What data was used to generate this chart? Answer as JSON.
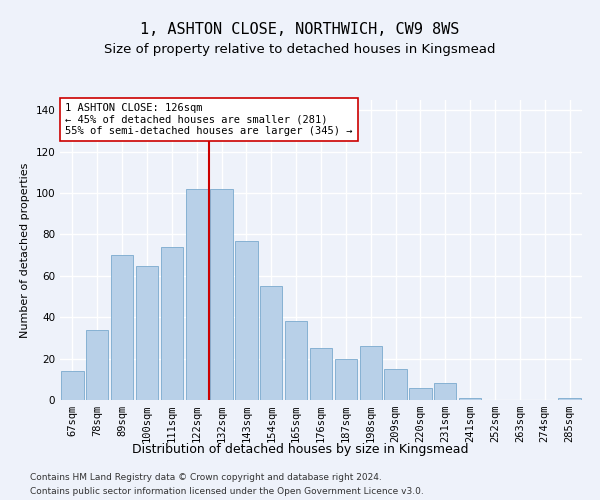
{
  "title": "1, ASHTON CLOSE, NORTHWICH, CW9 8WS",
  "subtitle": "Size of property relative to detached houses in Kingsmead",
  "xlabel": "Distribution of detached houses by size in Kingsmead",
  "ylabel": "Number of detached properties",
  "categories": [
    "67sqm",
    "78sqm",
    "89sqm",
    "100sqm",
    "111sqm",
    "122sqm",
    "132sqm",
    "143sqm",
    "154sqm",
    "165sqm",
    "176sqm",
    "187sqm",
    "198sqm",
    "209sqm",
    "220sqm",
    "231sqm",
    "241sqm",
    "252sqm",
    "263sqm",
    "274sqm",
    "285sqm"
  ],
  "values": [
    14,
    34,
    70,
    65,
    74,
    102,
    102,
    77,
    55,
    38,
    25,
    20,
    26,
    15,
    6,
    8,
    1,
    0,
    0,
    0,
    1
  ],
  "bar_color": "#b8d0e8",
  "bar_edge_color": "#7aaace",
  "vline_x": 5.5,
  "vline_color": "#cc0000",
  "annotation_text": "1 ASHTON CLOSE: 126sqm\n← 45% of detached houses are smaller (281)\n55% of semi-detached houses are larger (345) →",
  "annotation_box_color": "#ffffff",
  "annotation_box_edge": "#cc0000",
  "ylim": [
    0,
    145
  ],
  "yticks": [
    0,
    20,
    40,
    60,
    80,
    100,
    120,
    140
  ],
  "footer1": "Contains HM Land Registry data © Crown copyright and database right 2024.",
  "footer2": "Contains public sector information licensed under the Open Government Licence v3.0.",
  "background_color": "#eef2fa",
  "grid_color": "#ffffff",
  "title_fontsize": 11,
  "subtitle_fontsize": 9.5,
  "xlabel_fontsize": 9,
  "ylabel_fontsize": 8,
  "tick_fontsize": 7.5,
  "annotation_fontsize": 7.5,
  "footer_fontsize": 6.5
}
